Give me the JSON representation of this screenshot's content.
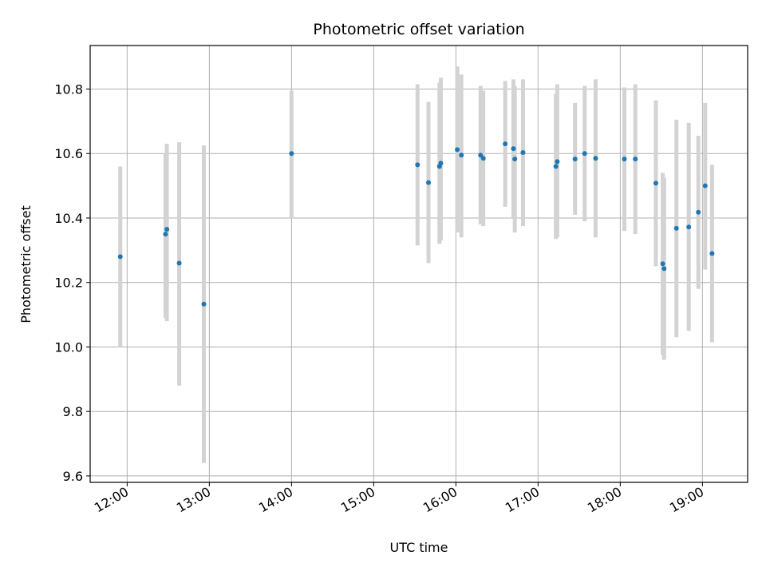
{
  "chart_data": {
    "type": "scatter",
    "title": "Photometric offset variation",
    "xlabel": "UTC time",
    "ylabel": "Photometric offset",
    "xlim": [
      "11:33",
      "19:33"
    ],
    "ylim": [
      9.58,
      10.935
    ],
    "x_ticks": [
      "12:00",
      "13:00",
      "14:00",
      "15:00",
      "16:00",
      "17:00",
      "18:00",
      "19:00"
    ],
    "y_ticks": [
      9.6,
      9.8,
      10.0,
      10.2,
      10.4,
      10.6,
      10.8
    ],
    "grid": true,
    "colors": {
      "point": "#1f77b4",
      "errorbar": "#d3d3d3",
      "grid": "#b0b0b0"
    },
    "points": [
      {
        "time": "11:55",
        "value": 10.28,
        "low": 10.0,
        "high": 10.56
      },
      {
        "time": "12:28",
        "value": 10.35,
        "low": 10.09,
        "high": 10.6
      },
      {
        "time": "12:29",
        "value": 10.365,
        "low": 10.08,
        "high": 10.63
      },
      {
        "time": "12:38",
        "value": 10.26,
        "low": 9.88,
        "high": 10.635
      },
      {
        "time": "12:56",
        "value": 10.133,
        "low": 9.64,
        "high": 10.625
      },
      {
        "time": "14:00",
        "value": 10.6,
        "low": 10.4,
        "high": 10.795
      },
      {
        "time": "15:32",
        "value": 10.565,
        "low": 10.315,
        "high": 10.815
      },
      {
        "time": "15:40",
        "value": 10.51,
        "low": 10.26,
        "high": 10.76
      },
      {
        "time": "15:48",
        "value": 10.56,
        "low": 10.32,
        "high": 10.82
      },
      {
        "time": "15:49",
        "value": 10.57,
        "low": 10.33,
        "high": 10.835
      },
      {
        "time": "16:01",
        "value": 10.612,
        "low": 10.355,
        "high": 10.87
      },
      {
        "time": "16:04",
        "value": 10.595,
        "low": 10.34,
        "high": 10.845
      },
      {
        "time": "16:18",
        "value": 10.595,
        "low": 10.38,
        "high": 10.81
      },
      {
        "time": "16:20",
        "value": 10.585,
        "low": 10.375,
        "high": 10.795
      },
      {
        "time": "16:36",
        "value": 10.63,
        "low": 10.435,
        "high": 10.825
      },
      {
        "time": "16:42",
        "value": 10.615,
        "low": 10.4,
        "high": 10.83
      },
      {
        "time": "16:43",
        "value": 10.583,
        "low": 10.355,
        "high": 10.81
      },
      {
        "time": "16:49",
        "value": 10.603,
        "low": 10.375,
        "high": 10.83
      },
      {
        "time": "17:13",
        "value": 10.56,
        "low": 10.335,
        "high": 10.785
      },
      {
        "time": "17:14",
        "value": 10.575,
        "low": 10.34,
        "high": 10.815
      },
      {
        "time": "17:27",
        "value": 10.583,
        "low": 10.41,
        "high": 10.757
      },
      {
        "time": "17:34",
        "value": 10.6,
        "low": 10.39,
        "high": 10.81
      },
      {
        "time": "17:42",
        "value": 10.585,
        "low": 10.34,
        "high": 10.83
      },
      {
        "time": "18:03",
        "value": 10.583,
        "low": 10.36,
        "high": 10.805
      },
      {
        "time": "18:11",
        "value": 10.583,
        "low": 10.35,
        "high": 10.815
      },
      {
        "time": "18:26",
        "value": 10.508,
        "low": 10.25,
        "high": 10.765
      },
      {
        "time": "18:31",
        "value": 10.258,
        "low": 9.975,
        "high": 10.54
      },
      {
        "time": "18:32",
        "value": 10.243,
        "low": 9.96,
        "high": 10.525
      },
      {
        "time": "18:41",
        "value": 10.368,
        "low": 10.03,
        "high": 10.705
      },
      {
        "time": "18:50",
        "value": 10.372,
        "low": 10.05,
        "high": 10.695
      },
      {
        "time": "18:57",
        "value": 10.418,
        "low": 10.18,
        "high": 10.655
      },
      {
        "time": "19:02",
        "value": 10.5,
        "low": 10.24,
        "high": 10.757
      },
      {
        "time": "19:07",
        "value": 10.29,
        "low": 10.015,
        "high": 10.565
      }
    ]
  }
}
